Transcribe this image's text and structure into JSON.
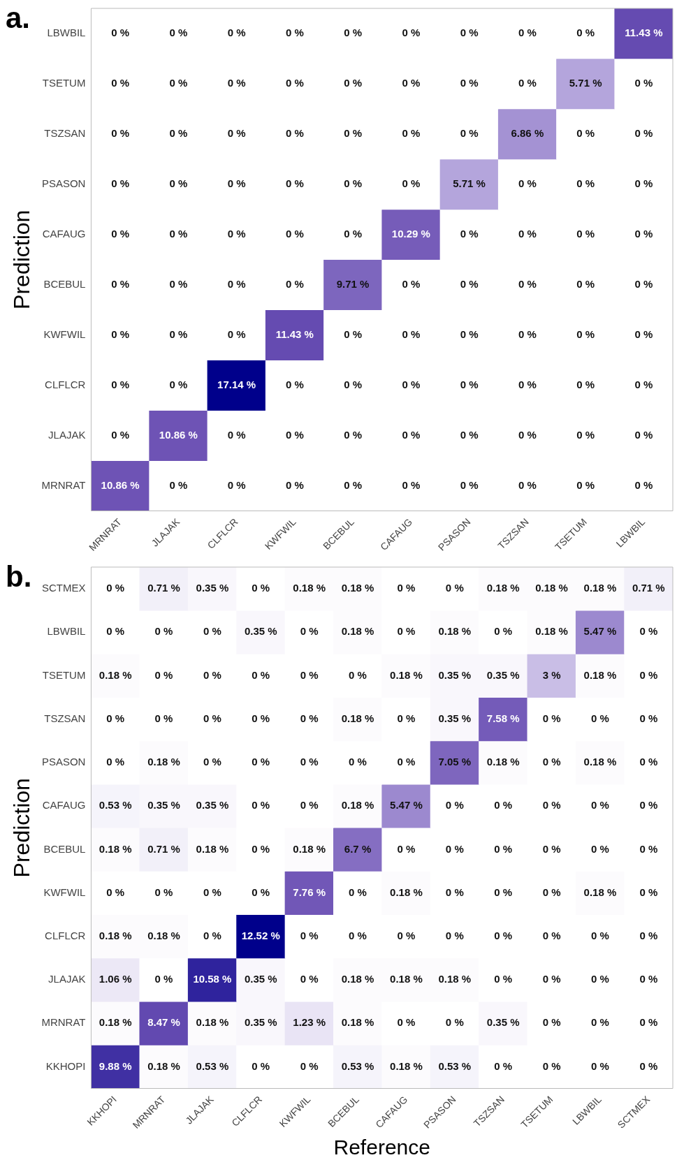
{
  "chart_data": [
    {
      "type": "heatmap",
      "title": "a.",
      "ylabel": "Prediction",
      "categories": [
        "MRNRAT",
        "JLAJAK",
        "CLFLCR",
        "KWFWIL",
        "BCEBUL",
        "CAFAUG",
        "PSASON",
        "TSZSAN",
        "TSETUM",
        "LBWBIL"
      ],
      "y_categories": [
        "LBWBIL",
        "TSETUM",
        "TSZSAN",
        "PSASON",
        "CAFAUG",
        "BCEBUL",
        "KWFWIL",
        "CLFLCR",
        "JLAJAK",
        "MRNRAT"
      ],
      "cells": [
        [
          0,
          0,
          0,
          0,
          0,
          0,
          0,
          0,
          0,
          11.43
        ],
        [
          0,
          0,
          0,
          0,
          0,
          0,
          0,
          0,
          5.71,
          0
        ],
        [
          0,
          0,
          0,
          0,
          0,
          0,
          0,
          6.86,
          0,
          0
        ],
        [
          0,
          0,
          0,
          0,
          0,
          0,
          5.71,
          0,
          0,
          0
        ],
        [
          0,
          0,
          0,
          0,
          0,
          10.29,
          0,
          0,
          0,
          0
        ],
        [
          0,
          0,
          0,
          0,
          9.71,
          0,
          0,
          0,
          0,
          0
        ],
        [
          0,
          0,
          0,
          11.43,
          0,
          0,
          0,
          0,
          0,
          0
        ],
        [
          0,
          0,
          17.14,
          0,
          0,
          0,
          0,
          0,
          0,
          0
        ],
        [
          0,
          10.86,
          0,
          0,
          0,
          0,
          0,
          0,
          0,
          0
        ],
        [
          10.86,
          0,
          0,
          0,
          0,
          0,
          0,
          0,
          0,
          0
        ]
      ],
      "cell_labels": [
        [
          "0 %",
          "0 %",
          "0 %",
          "0 %",
          "0 %",
          "0 %",
          "0 %",
          "0 %",
          "0 %",
          "11.43 %"
        ],
        [
          "0 %",
          "0 %",
          "0 %",
          "0 %",
          "0 %",
          "0 %",
          "0 %",
          "0 %",
          "5.71 %",
          "0 %"
        ],
        [
          "0 %",
          "0 %",
          "0 %",
          "0 %",
          "0 %",
          "0 %",
          "0 %",
          "6.86 %",
          "0 %",
          "0 %"
        ],
        [
          "0 %",
          "0 %",
          "0 %",
          "0 %",
          "0 %",
          "0 %",
          "5.71 %",
          "0 %",
          "0 %",
          "0 %"
        ],
        [
          "0 %",
          "0 %",
          "0 %",
          "0 %",
          "0 %",
          "10.29 %",
          "0 %",
          "0 %",
          "0 %",
          "0 %"
        ],
        [
          "0 %",
          "0 %",
          "0 %",
          "0 %",
          "9.71 %",
          "0 %",
          "0 %",
          "0 %",
          "0 %",
          "0 %"
        ],
        [
          "0 %",
          "0 %",
          "0 %",
          "11.43 %",
          "0 %",
          "0 %",
          "0 %",
          "0 %",
          "0 %",
          "0 %"
        ],
        [
          "0 %",
          "0 %",
          "17.14 %",
          "0 %",
          "0 %",
          "0 %",
          "0 %",
          "0 %",
          "0 %",
          "0 %"
        ],
        [
          "0 %",
          "10.86 %",
          "0 %",
          "0 %",
          "0 %",
          "0 %",
          "0 %",
          "0 %",
          "0 %",
          "0 %"
        ],
        [
          "10.86 %",
          "0 %",
          "0 %",
          "0 %",
          "0 %",
          "0 %",
          "0 %",
          "0 %",
          "0 %",
          "0 %"
        ]
      ]
    },
    {
      "type": "heatmap",
      "title": "b.",
      "ylabel": "Prediction",
      "xlabel": "Reference",
      "categories": [
        "KKHOPI",
        "MRNRAT",
        "JLAJAK",
        "CLFLCR",
        "KWFWIL",
        "BCEBUL",
        "CAFAUG",
        "PSASON",
        "TSZSAN",
        "TSETUM",
        "LBWBIL",
        "SCTMEX"
      ],
      "y_categories": [
        "SCTMEX",
        "LBWBIL",
        "TSETUM",
        "TSZSAN",
        "PSASON",
        "CAFAUG",
        "BCEBUL",
        "KWFWIL",
        "CLFLCR",
        "JLAJAK",
        "MRNRAT",
        "KKHOPI"
      ],
      "cells": [
        [
          0,
          0.71,
          0.35,
          0,
          0.18,
          0.18,
          0,
          0,
          0.18,
          0.18,
          0.18,
          0.71
        ],
        [
          0,
          0,
          0,
          0.35,
          0,
          0.18,
          0,
          0.18,
          0,
          0.18,
          5.47,
          0
        ],
        [
          0.18,
          0,
          0,
          0,
          0,
          0,
          0.18,
          0.35,
          0.35,
          3,
          0.18,
          0
        ],
        [
          0,
          0,
          0,
          0,
          0,
          0.18,
          0,
          0.35,
          7.58,
          0,
          0,
          0
        ],
        [
          0,
          0.18,
          0,
          0,
          0,
          0,
          0,
          7.05,
          0.18,
          0,
          0.18,
          0
        ],
        [
          0.53,
          0.35,
          0.35,
          0,
          0,
          0.18,
          5.47,
          0,
          0,
          0,
          0,
          0
        ],
        [
          0.18,
          0.71,
          0.18,
          0,
          0.18,
          6.7,
          0,
          0,
          0,
          0,
          0,
          0
        ],
        [
          0,
          0,
          0,
          0,
          7.76,
          0,
          0.18,
          0,
          0,
          0,
          0.18,
          0
        ],
        [
          0.18,
          0.18,
          0,
          12.52,
          0,
          0,
          0,
          0,
          0,
          0,
          0,
          0
        ],
        [
          1.06,
          0,
          10.58,
          0.35,
          0,
          0.18,
          0.18,
          0.18,
          0,
          0,
          0,
          0
        ],
        [
          0.18,
          8.47,
          0.18,
          0.35,
          1.23,
          0.18,
          0,
          0,
          0.35,
          0,
          0,
          0
        ],
        [
          9.88,
          0.18,
          0.53,
          0,
          0,
          0.53,
          0.18,
          0.53,
          0,
          0,
          0,
          0
        ]
      ],
      "cell_labels": [
        [
          "0 %",
          "0.71 %",
          "0.35 %",
          "0 %",
          "0.18 %",
          "0.18 %",
          "0 %",
          "0 %",
          "0.18 %",
          "0.18 %",
          "0.18 %",
          "0.71 %"
        ],
        [
          "0 %",
          "0 %",
          "0 %",
          "0.35 %",
          "0 %",
          "0.18 %",
          "0 %",
          "0.18 %",
          "0 %",
          "0.18 %",
          "5.47 %",
          "0 %"
        ],
        [
          "0.18 %",
          "0 %",
          "0 %",
          "0 %",
          "0 %",
          "0 %",
          "0.18 %",
          "0.35 %",
          "0.35 %",
          "3 %",
          "0.18 %",
          "0 %"
        ],
        [
          "0 %",
          "0 %",
          "0 %",
          "0 %",
          "0 %",
          "0.18 %",
          "0 %",
          "0.35 %",
          "7.58 %",
          "0 %",
          "0 %",
          "0 %"
        ],
        [
          "0 %",
          "0.18 %",
          "0 %",
          "0 %",
          "0 %",
          "0 %",
          "0 %",
          "7.05 %",
          "0.18 %",
          "0 %",
          "0.18 %",
          "0 %"
        ],
        [
          "0.53 %",
          "0.35 %",
          "0.35 %",
          "0 %",
          "0 %",
          "0.18 %",
          "5.47 %",
          "0 %",
          "0 %",
          "0 %",
          "0 %",
          "0 %"
        ],
        [
          "0.18 %",
          "0.71 %",
          "0.18 %",
          "0 %",
          "0.18 %",
          "6.7 %",
          "0 %",
          "0 %",
          "0 %",
          "0 %",
          "0 %",
          "0 %"
        ],
        [
          "0 %",
          "0 %",
          "0 %",
          "0 %",
          "7.76 %",
          "0 %",
          "0.18 %",
          "0 %",
          "0 %",
          "0 %",
          "0.18 %",
          "0 %"
        ],
        [
          "0.18 %",
          "0.18 %",
          "0 %",
          "12.52 %",
          "0 %",
          "0 %",
          "0 %",
          "0 %",
          "0 %",
          "0 %",
          "0 %",
          "0 %"
        ],
        [
          "1.06 %",
          "0 %",
          "10.58 %",
          "0.35 %",
          "0 %",
          "0.18 %",
          "0.18 %",
          "0.18 %",
          "0 %",
          "0 %",
          "0 %",
          "0 %"
        ],
        [
          "0.18 %",
          "8.47 %",
          "0.18 %",
          "0.35 %",
          "1.23 %",
          "0.18 %",
          "0 %",
          "0 %",
          "0.35 %",
          "0 %",
          "0 %",
          "0 %"
        ],
        [
          "9.88 %",
          "0.18 %",
          "0.53 %",
          "0 %",
          "0 %",
          "0.53 %",
          "0.18 %",
          "0.53 %",
          "0 %",
          "0 %",
          "0 %",
          "0 %"
        ]
      ]
    }
  ]
}
